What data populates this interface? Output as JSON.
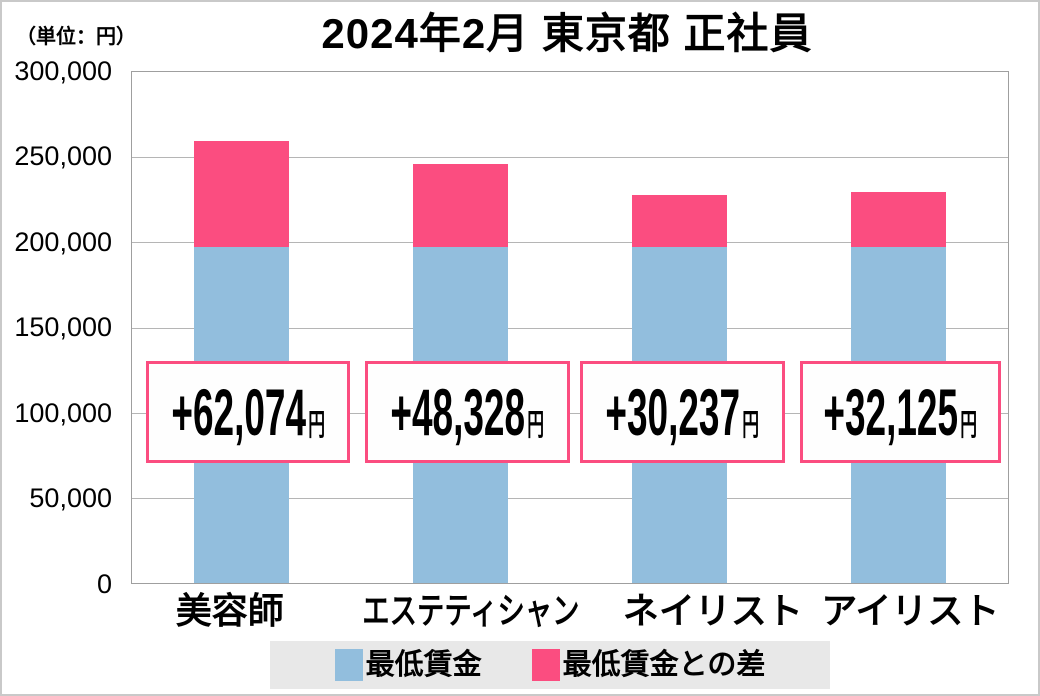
{
  "header": {
    "unit_label": "（単位：円）",
    "title": "2024年2月 東京都 正社員"
  },
  "chart_data": {
    "type": "bar",
    "stacked": true,
    "title": "2024年2月 東京都 正社員",
    "unit": "円",
    "categories": [
      "美容師",
      "エステティシャン",
      "ネイリスト",
      "アイリスト"
    ],
    "series": [
      {
        "name": "最低賃金",
        "color": "#92bedd",
        "estimated": true,
        "values": [
          197500,
          197500,
          197500,
          197500
        ]
      },
      {
        "name": "最低賃金との差",
        "color": "#fb4d80",
        "values": [
          62074,
          48328,
          30237,
          32125
        ]
      }
    ],
    "totals": [
      259574,
      245828,
      227737,
      229625
    ],
    "value_labels": [
      "+62,074",
      "+48,328",
      "+30,237",
      "+32,125"
    ],
    "value_label_unit": "円",
    "ylim": [
      0,
      300000
    ],
    "ytick_interval": 50000,
    "yticks": [
      "300,000",
      "250,000",
      "200,000",
      "150,000",
      "100,000",
      "50,000",
      "0"
    ],
    "grid": true,
    "legend_position": "bottom"
  },
  "colors": {
    "box_border": "#fb4d80",
    "box_bg": "#fefefe",
    "legend_bg": "#e8e8e8",
    "grid_line": "#b5b5b5",
    "plot_border": "#9f9f9f",
    "outer_border": "#c9c9c9"
  }
}
